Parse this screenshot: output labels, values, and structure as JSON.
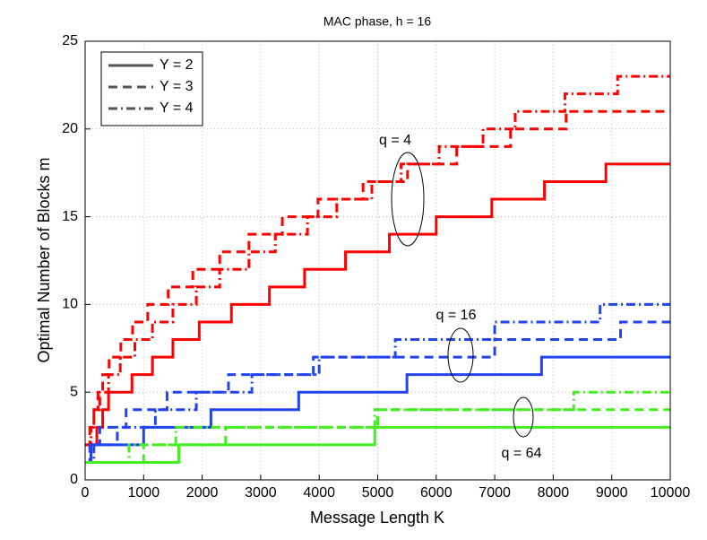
{
  "chart_data": {
    "type": "step",
    "title": "MAC phase, h = 16",
    "xlabel": "Message Length K",
    "ylabel": "Optimal Number of Blocks m",
    "xlim": [
      0,
      10000
    ],
    "ylim": [
      0,
      25
    ],
    "xticks": [
      0,
      1000,
      2000,
      3000,
      4000,
      5000,
      6000,
      7000,
      8000,
      9000,
      10000
    ],
    "yticks": [
      0,
      5,
      10,
      15,
      20,
      25
    ],
    "grid": true,
    "legend_position": "upper left",
    "legend": [
      {
        "label": "Y = 2",
        "dash": "solid"
      },
      {
        "label": "Y = 3",
        "dash": "dashed"
      },
      {
        "label": "Y = 4",
        "dash": "dashdot"
      }
    ],
    "annotations": [
      "q = 4",
      "q = 16",
      "q = 64"
    ],
    "series": [
      {
        "color": "#ff0000",
        "dash": "solid",
        "x": [
          0,
          100,
          200,
          300,
          400,
          800,
          1150,
          1500,
          1950,
          2500,
          3150,
          3750,
          4450,
          5200,
          6000,
          6950,
          7850,
          8900,
          10000
        ],
        "values": [
          1,
          2,
          3,
          4,
          5,
          6,
          7,
          8,
          9,
          10,
          11,
          12,
          13,
          14,
          15,
          16,
          17,
          18,
          18
        ]
      },
      {
        "color": "#ff0000",
        "dash": "dashed",
        "x": [
          0,
          80,
          150,
          220,
          300,
          410,
          610,
          810,
          1070,
          1420,
          1840,
          2300,
          2800,
          3370,
          3980,
          4750,
          5510,
          6350,
          7270,
          8220,
          10000
        ],
        "values": [
          2,
          3,
          4,
          5,
          6,
          7,
          8,
          9,
          10,
          11,
          12,
          13,
          14,
          15,
          16,
          17,
          18,
          19,
          20,
          21,
          21
        ]
      },
      {
        "color": "#ff0000",
        "dash": "dashdot",
        "x": [
          0,
          100,
          150,
          250,
          400,
          600,
          850,
          1150,
          1500,
          1900,
          2300,
          2800,
          3250,
          3800,
          4300,
          4900,
          5400,
          6050,
          6800,
          7350,
          8200,
          9100,
          10000
        ],
        "values": [
          2,
          3,
          4,
          5,
          6,
          7,
          8,
          9,
          10,
          11,
          12,
          13,
          14,
          15,
          16,
          17,
          18,
          19,
          20,
          21,
          22,
          23,
          23
        ]
      },
      {
        "color": "#2244ee",
        "dash": "solid",
        "x": [
          0,
          100,
          1000,
          2150,
          3650,
          5500,
          7800,
          10000
        ],
        "values": [
          1,
          2,
          3,
          4,
          5,
          6,
          7,
          7
        ]
      },
      {
        "color": "#2244ee",
        "dash": "dashed",
        "x": [
          0,
          80,
          250,
          700,
          1400,
          2450,
          3900,
          7000,
          9150,
          10000
        ],
        "values": [
          1,
          2,
          3,
          4,
          5,
          6,
          7,
          8,
          9,
          9
        ]
      },
      {
        "color": "#2244ee",
        "dash": "dashdot",
        "x": [
          0,
          150,
          550,
          1200,
          1900,
          2850,
          4000,
          5300,
          7000,
          8800,
          10000
        ],
        "values": [
          1,
          2,
          3,
          4,
          5,
          6,
          7,
          8,
          9,
          10,
          10
        ]
      },
      {
        "color": "#44ee22",
        "dash": "solid",
        "x": [
          0,
          1600,
          4950,
          10000
        ],
        "values": [
          1,
          2,
          3,
          3
        ]
      },
      {
        "color": "#44ee22",
        "dash": "dashed",
        "x": [
          0,
          1000,
          2400,
          5000,
          10000
        ],
        "values": [
          1,
          2,
          3,
          4,
          4
        ]
      },
      {
        "color": "#44ee22",
        "dash": "dashdot",
        "x": [
          0,
          750,
          1550,
          4950,
          8350,
          10000
        ],
        "values": [
          1,
          2,
          3,
          4,
          5,
          5
        ]
      }
    ]
  }
}
